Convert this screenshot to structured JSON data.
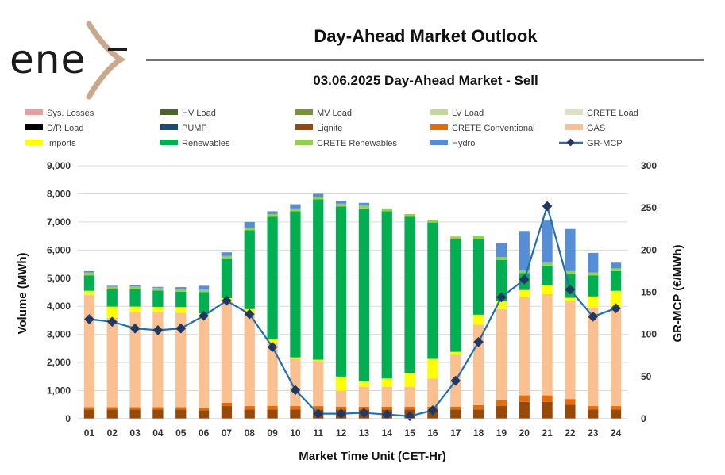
{
  "logo": {
    "text": "ene",
    "accent_color": "#c9a88c"
  },
  "header": {
    "title": "Day-Ahead Market Outlook",
    "subtitle": "03.06.2025  Day-Ahead Market - Sell"
  },
  "chart_data": {
    "type": "bar",
    "stacked": true,
    "title": "03.06.2025  Day-Ahead Market - Sell",
    "xlabel": "Market Time Unit (CET-Hr)",
    "ylabel": "Volume (MWh)",
    "y2label": "GR-MCP (€/MWh)",
    "ylim": [
      0,
      9000
    ],
    "y2lim": [
      0,
      300
    ],
    "yticks": [
      "0",
      "1,000",
      "2,000",
      "3,000",
      "4,000",
      "5,000",
      "6,000",
      "7,000",
      "8,000",
      "9,000"
    ],
    "y2ticks": [
      "0",
      "50",
      "100",
      "150",
      "200",
      "250",
      "300"
    ],
    "categories": [
      "01",
      "02",
      "03",
      "04",
      "05",
      "06",
      "07",
      "08",
      "09",
      "10",
      "11",
      "12",
      "13",
      "14",
      "15",
      "16",
      "17",
      "18",
      "19",
      "20",
      "21",
      "22",
      "23",
      "24"
    ],
    "legend_position": "top",
    "legend": [
      {
        "name": "Sys. Losses",
        "color": "#e6a0a0",
        "marker": "bar"
      },
      {
        "name": "HV Load",
        "color": "#4f6228",
        "marker": "bar"
      },
      {
        "name": "MV Load",
        "color": "#77933c",
        "marker": "bar"
      },
      {
        "name": "LV Load",
        "color": "#c3d69b",
        "marker": "bar"
      },
      {
        "name": "CRETE Load",
        "color": "#d7e4bd",
        "marker": "bar"
      },
      {
        "name": "D/R Load",
        "color": "#000000",
        "marker": "bar"
      },
      {
        "name": "PUMP",
        "color": "#1f497d",
        "marker": "bar"
      },
      {
        "name": "Lignite",
        "color": "#984807",
        "marker": "bar"
      },
      {
        "name": "CRETE Conventional",
        "color": "#e46c0a",
        "marker": "bar"
      },
      {
        "name": "GAS",
        "color": "#fac090",
        "marker": "bar"
      },
      {
        "name": "Imports",
        "color": "#ffff00",
        "marker": "bar"
      },
      {
        "name": "Renewables",
        "color": "#00b050",
        "marker": "bar"
      },
      {
        "name": "CRETE Renewables",
        "color": "#92d050",
        "marker": "bar"
      },
      {
        "name": "Hydro",
        "color": "#558ed5",
        "marker": "bar"
      },
      {
        "name": "GR-MCP",
        "color": "#1f6fb5",
        "marker": "line"
      }
    ],
    "series": [
      {
        "name": "Lignite",
        "color": "#984807",
        "values": [
          330,
          330,
          330,
          330,
          330,
          300,
          450,
          330,
          330,
          330,
          330,
          330,
          330,
          330,
          330,
          330,
          330,
          330,
          450,
          600,
          600,
          500,
          330,
          330
        ]
      },
      {
        "name": "CRETE Conventional",
        "color": "#e46c0a",
        "values": [
          80,
          80,
          80,
          80,
          80,
          80,
          120,
          120,
          130,
          120,
          120,
          100,
          100,
          100,
          100,
          100,
          100,
          150,
          200,
          230,
          230,
          200,
          120,
          120
        ]
      },
      {
        "name": "GAS",
        "color": "#fac090",
        "values": [
          3990,
          3180,
          3380,
          3370,
          3360,
          3220,
          3600,
          3300,
          2270,
          1680,
          1600,
          570,
          700,
          700,
          700,
          1000,
          1850,
          2870,
          3250,
          3500,
          3600,
          3500,
          3500,
          3500
        ]
      },
      {
        "name": "Imports",
        "color": "#ffff00",
        "values": [
          150,
          400,
          200,
          200,
          200,
          150,
          120,
          150,
          100,
          50,
          50,
          500,
          200,
          300,
          500,
          700,
          100,
          350,
          300,
          250,
          320,
          100,
          400,
          600
        ]
      },
      {
        "name": "Renewables",
        "color": "#00b050",
        "values": [
          550,
          610,
          620,
          580,
          550,
          750,
          1400,
          2800,
          4350,
          5200,
          5700,
          6050,
          6150,
          5950,
          5550,
          4850,
          4000,
          2700,
          1450,
          600,
          700,
          850,
          750,
          700
        ]
      },
      {
        "name": "CRETE Renewables",
        "color": "#92d050",
        "values": [
          100,
          100,
          100,
          100,
          100,
          100,
          100,
          100,
          100,
          100,
          100,
          100,
          100,
          100,
          100,
          100,
          100,
          100,
          100,
          100,
          100,
          100,
          100,
          100
        ]
      },
      {
        "name": "Hydro",
        "color": "#558ed5",
        "values": [
          50,
          30,
          30,
          30,
          60,
          130,
          130,
          200,
          100,
          150,
          100,
          100,
          100,
          0,
          0,
          0,
          0,
          0,
          500,
          1400,
          1500,
          1500,
          700,
          200
        ]
      }
    ],
    "line": {
      "name": "GR-MCP",
      "color": "#1f6fb5",
      "axis": "right",
      "values": [
        118,
        115,
        107,
        105,
        107,
        122,
        140,
        124,
        85,
        34,
        6,
        6,
        7,
        5,
        3,
        10,
        45,
        91,
        144,
        165,
        252,
        153,
        121,
        131
      ]
    }
  }
}
